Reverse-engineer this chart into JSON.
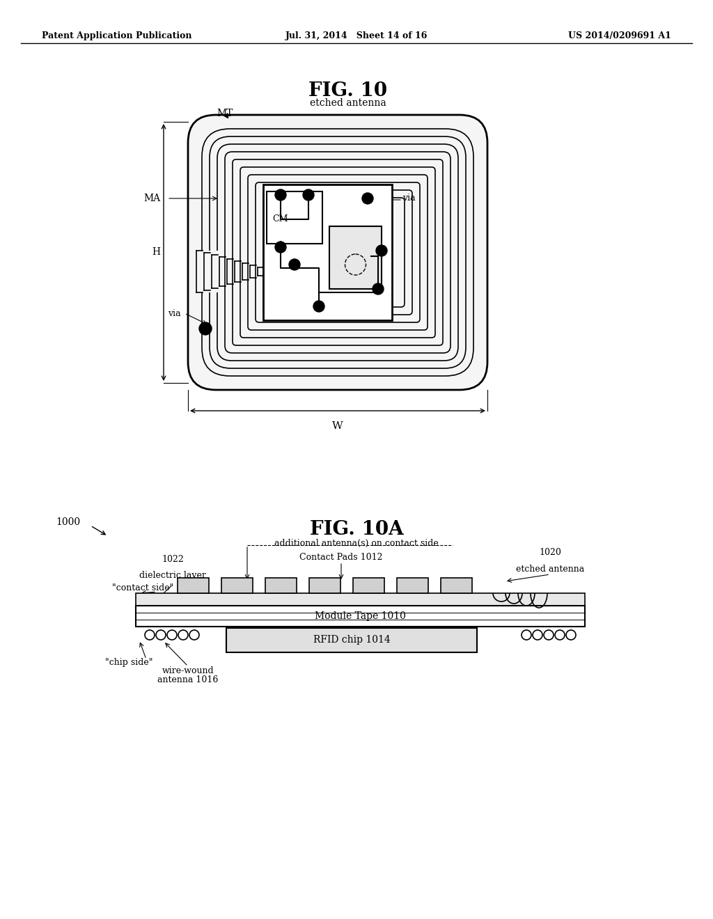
{
  "bg_color": "#ffffff",
  "header_left": "Patent Application Publication",
  "header_center": "Jul. 31, 2014   Sheet 14 of 16",
  "header_right": "US 2014/0209691 A1",
  "fig10_title": "FIG. 10",
  "fig10_subtitle": "etched antenna",
  "fig10a_title": "FIG. 10A",
  "fig10a_subtitle": "additional antenna(s) on contact side",
  "label_1000": "1000",
  "label_MT": "MT",
  "label_MA": "MA",
  "label_H": "H",
  "label_via1": "via",
  "label_via2": "via",
  "label_CM": "CM",
  "label_W": "W",
  "label_1022": "1022",
  "label_dielectric": "dielectric layer",
  "label_contact_side": "\"contact side\"",
  "label_contact_pads": "Contact Pads 1012",
  "label_1020": "1020",
  "label_etched_antenna": "etched antenna",
  "label_module_tape": "Module Tape",
  "label_1010": "1010",
  "label_rfid": "RFID chip",
  "label_1014": "1014",
  "label_chip_side": "\"chip side\"",
  "label_wire_wound": "wire-wound",
  "label_antenna_1016": "antenna 1016",
  "line_color": "#000000",
  "fill_color": "#ffffff",
  "dark_fill": "#000000",
  "light_gray": "#cccccc"
}
